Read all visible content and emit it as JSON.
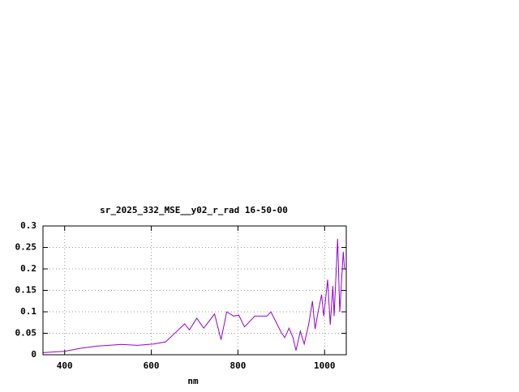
{
  "chart_data": {
    "type": "line",
    "title": "sr_2025_332_MSE__y02_r_rad 16-50-00",
    "x_label": "nm",
    "xlim": [
      350,
      1050
    ],
    "ylim": [
      0,
      0.3
    ],
    "xticks": [
      400,
      600,
      800,
      1000
    ],
    "yticks": [
      0,
      0.05,
      0.1,
      0.15,
      0.2,
      0.25,
      0.3
    ],
    "grid": true,
    "series": [
      {
        "color": "#9400d3",
        "x": [
          350,
          400,
          437,
          474,
          531,
          568,
          605,
          633,
          652,
          677,
          688,
          705,
          721,
          746,
          761,
          774,
          790,
          802,
          815,
          839,
          867,
          876,
          886,
          901,
          908,
          918,
          927,
          934,
          944,
          953,
          963,
          972,
          978,
          985,
          993,
          998,
          1007,
          1013,
          1019,
          1022,
          1030,
          1035,
          1043,
          1046
        ],
        "values": [
          0.005,
          0.008,
          0.015,
          0.02,
          0.024,
          0.022,
          0.025,
          0.03,
          0.048,
          0.072,
          0.058,
          0.085,
          0.062,
          0.095,
          0.035,
          0.1,
          0.09,
          0.092,
          0.065,
          0.09,
          0.09,
          0.1,
          0.08,
          0.05,
          0.04,
          0.062,
          0.04,
          0.01,
          0.055,
          0.025,
          0.07,
          0.125,
          0.06,
          0.1,
          0.14,
          0.09,
          0.175,
          0.07,
          0.16,
          0.09,
          0.27,
          0.1,
          0.24,
          0.2
        ]
      }
    ]
  }
}
